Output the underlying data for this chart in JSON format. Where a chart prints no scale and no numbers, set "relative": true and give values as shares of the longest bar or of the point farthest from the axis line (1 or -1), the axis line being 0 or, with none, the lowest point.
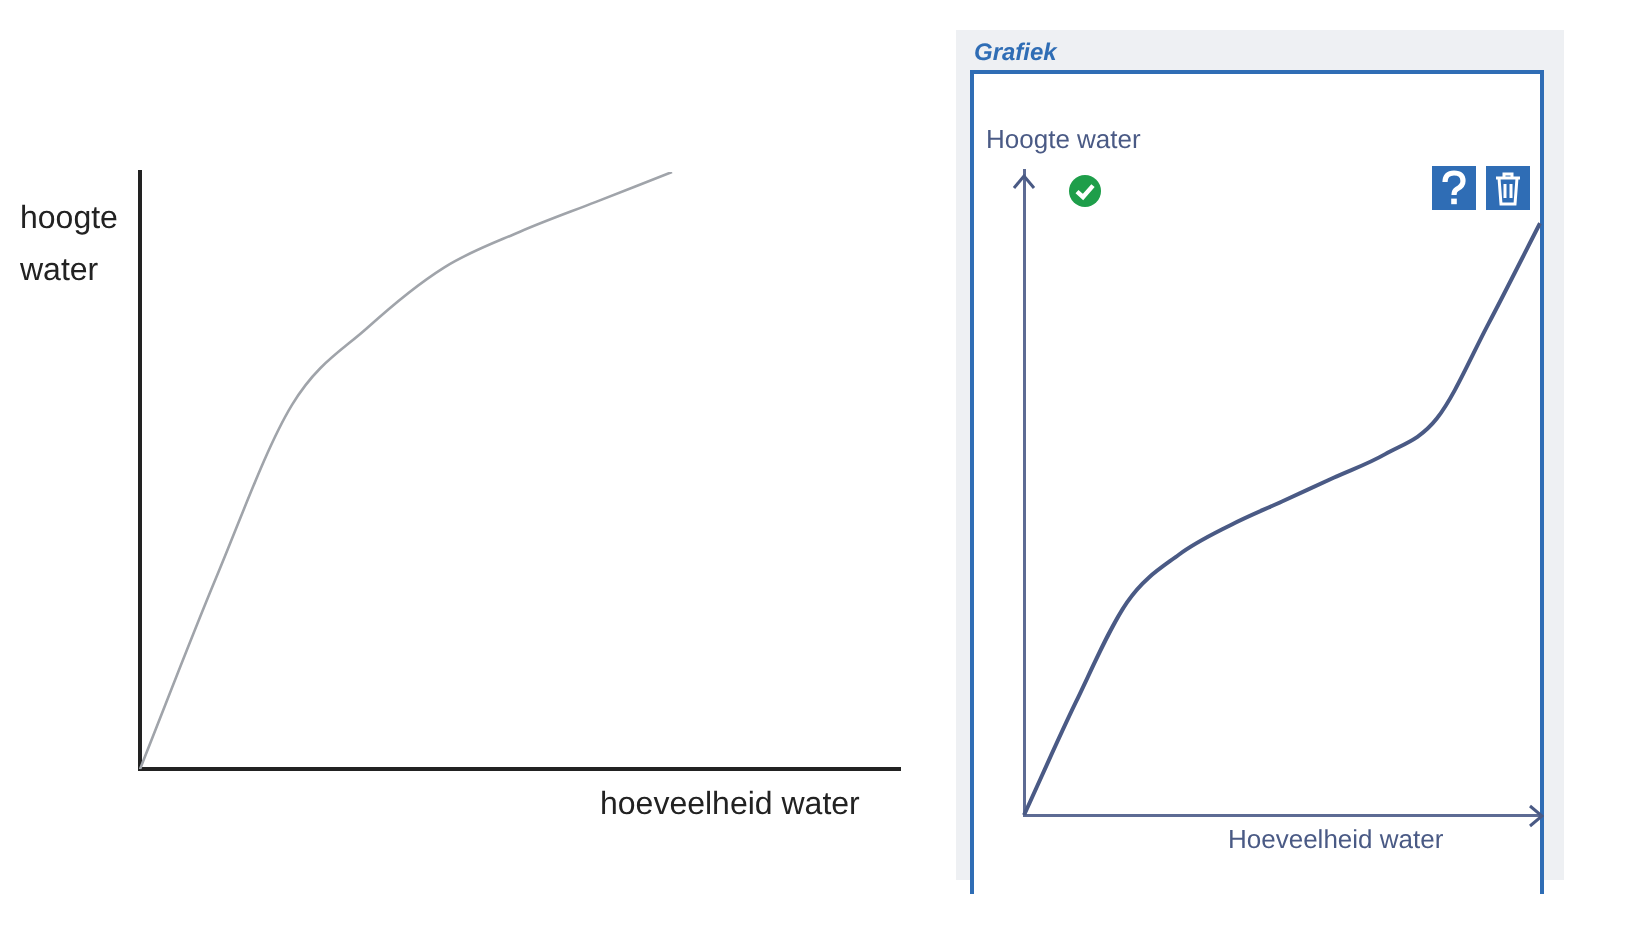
{
  "chart_data": [
    {
      "type": "line",
      "relative": true,
      "xlabel": "hoeveelheid water",
      "ylabel": "hoogte water",
      "categories": [
        null,
        null,
        null,
        null,
        null,
        null,
        null,
        null,
        null,
        null,
        null
      ],
      "series": [
        {
          "color": "#a0a4aa",
          "values": [
            0,
            0.32,
            0.61,
            0.74,
            0.84,
            0.9,
            0.95,
            1,
            null,
            null,
            null
          ]
        }
      ],
      "grid": false,
      "legend": false,
      "marker": "none"
    },
    {
      "type": "line",
      "relative": true,
      "title": "Grafiek",
      "xlabel": "Hoeveelheid water",
      "ylabel": "Hoogte water",
      "categories": [
        null,
        null,
        null,
        null,
        null,
        null,
        null,
        null,
        null,
        null,
        null
      ],
      "series": [
        {
          "color": "#4a5a85",
          "values": [
            0,
            0.19,
            0.36,
            0.44,
            0.49,
            0.53,
            0.57,
            0.61,
            0.67,
            0.83,
            1
          ]
        }
      ],
      "grid": false,
      "legend": false,
      "marker": "none"
    }
  ]
}
